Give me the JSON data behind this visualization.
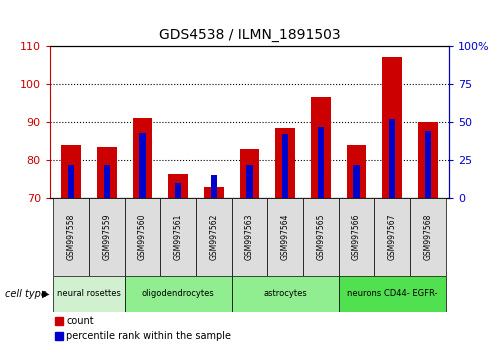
{
  "title": "GDS4538 / ILMN_1891503",
  "samples": [
    "GSM997558",
    "GSM997559",
    "GSM997560",
    "GSM997561",
    "GSM997562",
    "GSM997563",
    "GSM997564",
    "GSM997565",
    "GSM997566",
    "GSM997567",
    "GSM997568"
  ],
  "count_values": [
    84.0,
    83.5,
    91.0,
    76.5,
    73.0,
    83.0,
    88.5,
    96.5,
    84.0,
    107.0,
    90.0
  ],
  "percentile_values": [
    22,
    22,
    43,
    10,
    15,
    22,
    42,
    47,
    22,
    52,
    44
  ],
  "ylim_left": [
    70,
    110
  ],
  "ylim_right": [
    0,
    100
  ],
  "yticks_left": [
    70,
    80,
    90,
    100,
    110
  ],
  "yticks_right": [
    0,
    25,
    50,
    75,
    100
  ],
  "yticklabels_right": [
    "0",
    "25",
    "50",
    "75",
    "100%"
  ],
  "bar_color": "#cc0000",
  "percentile_color": "#0000cc",
  "cell_groups": [
    {
      "label": "neural rosettes",
      "start": 0,
      "end": 1,
      "color": "#d0f0d0"
    },
    {
      "label": "oligodendrocytes",
      "start": 2,
      "end": 4,
      "color": "#90ee90"
    },
    {
      "label": "astrocytes",
      "start": 5,
      "end": 7,
      "color": "#90ee90"
    },
    {
      "label": "neurons CD44- EGFR-",
      "start": 8,
      "end": 10,
      "color": "#50e050"
    }
  ],
  "legend_count_label": "count",
  "legend_pct_label": "percentile rank within the sample",
  "tick_color_left": "#cc0000",
  "tick_color_right": "#0000cc",
  "bar_bottom": 70,
  "bar_width": 0.55,
  "blue_bar_width": 0.18
}
